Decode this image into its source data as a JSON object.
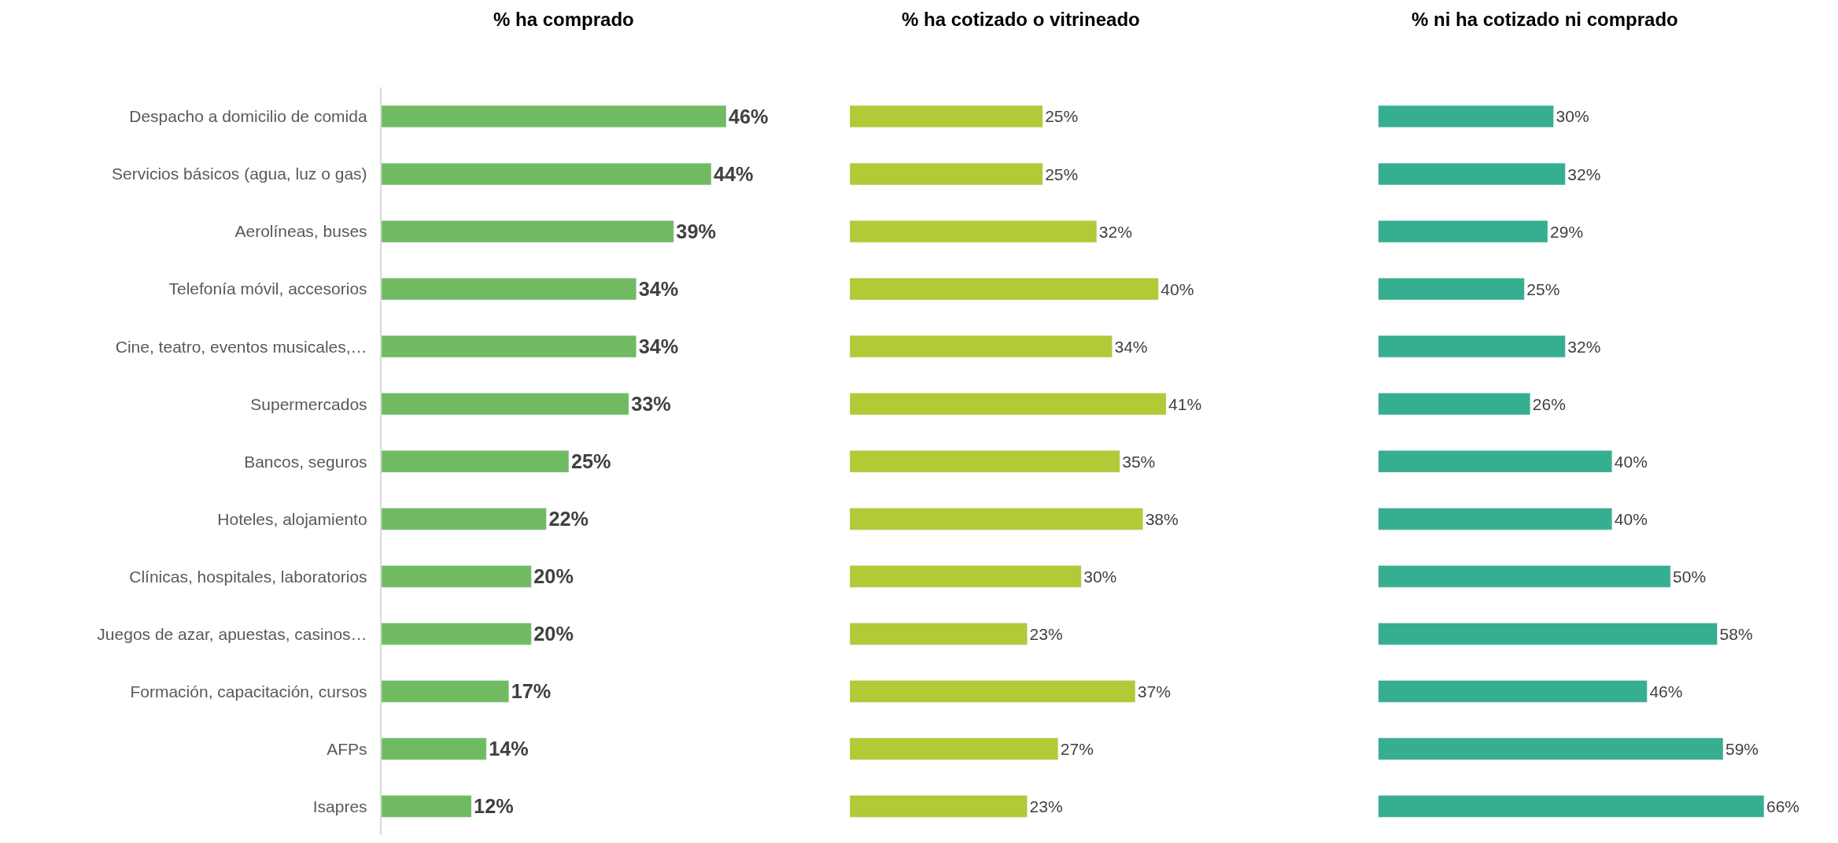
{
  "chart_data": [
    {
      "type": "bar",
      "orientation": "horizontal",
      "title": "% ha comprado",
      "tick_labels": "y",
      "categories": [
        "Despacho a domicilio de comida",
        "Servicios básicos (agua, luz o gas)",
        "Aerolíneas, buses",
        "Telefonía móvil, accesorios",
        "Cine, teatro, eventos musicales,…",
        "Supermercados",
        "Bancos, seguros",
        "Hoteles, alojamiento",
        "Clínicas, hospitales, laboratorios",
        "Juegos de azar, apuestas, casinos…",
        "Formación, capacitación, cursos",
        "AFPs",
        "Isapres"
      ],
      "values": [
        46,
        44,
        39,
        34,
        34,
        33,
        25,
        22,
        20,
        20,
        17,
        14,
        12
      ],
      "value_labels": [
        "46%",
        "44%",
        "39%",
        "34%",
        "34%",
        "33%",
        "25%",
        "22%",
        "20%",
        "20%",
        "17%",
        "14%",
        "12%"
      ],
      "color": "#70bb62"
    },
    {
      "type": "bar",
      "orientation": "horizontal",
      "title": "% ha cotizado o vitrineado",
      "tick_labels": false,
      "categories": [
        null,
        null,
        null,
        null,
        null,
        null,
        null,
        null,
        null,
        null,
        null,
        null,
        null
      ],
      "values": [
        25,
        25,
        32,
        40,
        34,
        41,
        35,
        38,
        30,
        23,
        37,
        27,
        23
      ],
      "value_labels": [
        "25%",
        "25%",
        "32%",
        "40%",
        "34%",
        "41%",
        "35%",
        "38%",
        "30%",
        "23%",
        "37%",
        "27%",
        "23%"
      ],
      "color": "#b3c935"
    },
    {
      "type": "bar",
      "orientation": "horizontal",
      "title": "% ni ha cotizado ni comprado",
      "tick_labels": false,
      "categories": [
        null,
        null,
        null,
        null,
        null,
        null,
        null,
        null,
        null,
        null,
        null,
        null,
        null
      ],
      "values": [
        30,
        32,
        29,
        25,
        32,
        26,
        40,
        40,
        50,
        58,
        46,
        59,
        66
      ],
      "value_labels": [
        "30%",
        "32%",
        "29%",
        "25%",
        "32%",
        "26%",
        "40%",
        "40%",
        "50%",
        "58%",
        "46%",
        "59%",
        "66%"
      ],
      "color": "#36ae90"
    }
  ]
}
